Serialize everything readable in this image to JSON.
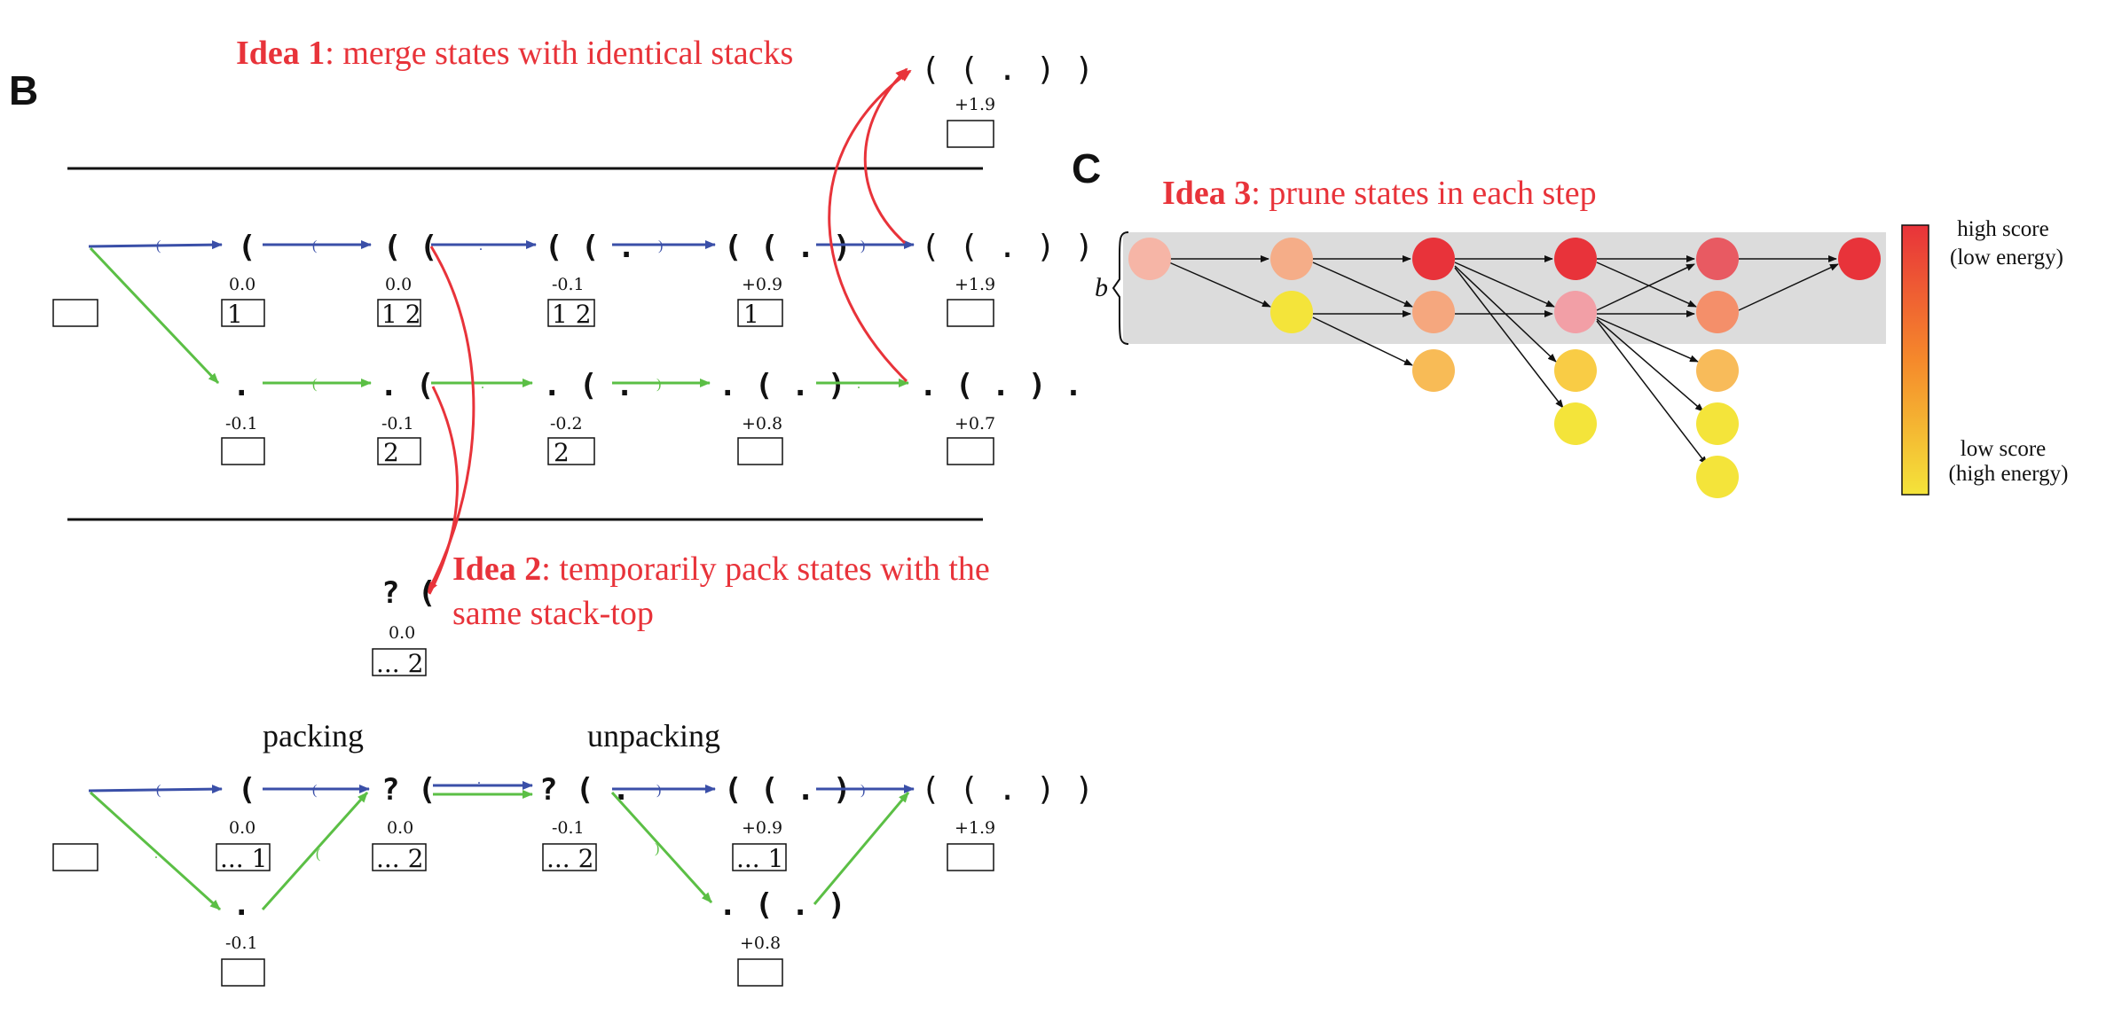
{
  "panels": {
    "b": "B",
    "c": "C"
  },
  "ideas": {
    "idea1": {
      "bold": "Idea 1",
      "rest": ": merge states with identical stacks"
    },
    "idea2": {
      "bold": "Idea 2",
      "rest_line1": ":  temporarily pack states with the",
      "rest_line2": "same stack-top"
    },
    "idea3": {
      "bold": "Idea 3",
      "rest": ": prune states in each step"
    }
  },
  "top_merged": {
    "seq": "( ( . ) )",
    "score": "+1.9",
    "stack": ""
  },
  "row_blue": {
    "states": [
      {
        "seq": "",
        "score": "",
        "stack": ""
      },
      {
        "seq": "(",
        "score": "0.0",
        "stack": "1"
      },
      {
        "seq": "( (",
        "score": "0.0",
        "stack": "1 2"
      },
      {
        "seq": "( ( .",
        "score": "-0.1",
        "stack": "1 2"
      },
      {
        "seq": "( ( . )",
        "score": "+0.9",
        "stack": "1"
      },
      {
        "seq": "( ( . ) )",
        "score": "+1.9",
        "stack": ""
      }
    ],
    "edge_labels": [
      "(",
      "(",
      ".",
      ")",
      ")"
    ]
  },
  "row_green": {
    "states": [
      {
        "seq": ".",
        "score": "-0.1",
        "stack": ""
      },
      {
        "seq": ". (",
        "score": "-0.1",
        "stack": "2"
      },
      {
        "seq": ". ( .",
        "score": "-0.2",
        "stack": "2"
      },
      {
        "seq": ". ( . )",
        "score": "+0.8",
        "stack": ""
      },
      {
        "seq": ". ( . ) .",
        "score": "+0.7",
        "stack": ""
      }
    ],
    "edge_labels": [
      ".",
      "(",
      ".",
      ")",
      "."
    ]
  },
  "packed_state": {
    "seq": "? (",
    "score": "0.0",
    "stack": "... 2"
  },
  "bottom": {
    "packing": "packing",
    "unpacking": "unpacking",
    "states": [
      {
        "seq": "",
        "score": "",
        "stack": ""
      },
      {
        "seq": "(",
        "score": "0.0",
        "stack": "... 1"
      },
      {
        "seq": "? (",
        "score": "0.0",
        "stack": "... 2"
      },
      {
        "seq": "? ( .",
        "score": "-0.1",
        "stack": "... 2"
      },
      {
        "seq": "( ( . )",
        "score": "+0.9",
        "stack": "... 1"
      },
      {
        "seq": "( ( . ) )",
        "score": "+1.9",
        "stack": ""
      },
      {
        "seq": ".",
        "score": "-0.1",
        "stack": ""
      },
      {
        "seq": ". ( . )",
        "score": "+0.8",
        "stack": ""
      }
    ],
    "edge_labels": [
      "(",
      "(",
      ".",
      ".",
      "(",
      ")",
      ")",
      ")"
    ]
  },
  "beam": {
    "b_label": "b",
    "legend_high": [
      "high score",
      "(low energy)"
    ],
    "legend_low": [
      "low score",
      "(high energy)"
    ],
    "colors": {
      "c1": "#f6b5a6",
      "c2": "#f5ad88",
      "c3": "#e8333a",
      "c4": "#e8333a",
      "c5": "#e85a62",
      "c6": "#e8333a",
      "y2": "#f4e43a",
      "o3": "#f5a77e",
      "p4": "#f29fa6",
      "o5": "#f48f6a",
      "a3": "#f8bb56",
      "a4": "#f9cc45",
      "a4b": "#f4e43a",
      "a5": "#f8bb5a",
      "a5b": "#f4e43a",
      "a5c": "#f4e43a"
    }
  }
}
